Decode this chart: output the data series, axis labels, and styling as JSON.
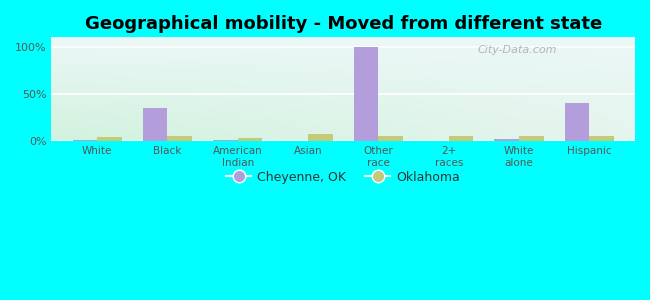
{
  "title": "Geographical mobility - Moved from different state",
  "categories": [
    "White",
    "Black",
    "American\nIndian",
    "Asian",
    "Other\nrace",
    "2+\nraces",
    "White\nalone",
    "Hispanic"
  ],
  "cheyenne_values": [
    1.0,
    35.0,
    1.0,
    0.0,
    100.0,
    0.0,
    2.0,
    40.0
  ],
  "oklahoma_values": [
    4.0,
    5.0,
    3.0,
    8.0,
    5.0,
    5.0,
    5.0,
    5.0
  ],
  "cheyenne_color": "#b39ddb",
  "oklahoma_color": "#c5c97a",
  "background_outer": "#00ffff",
  "ylim": [
    0,
    110
  ],
  "yticks": [
    0,
    50,
    100
  ],
  "ytick_labels": [
    "0%",
    "50%",
    "100%"
  ],
  "bar_width": 0.35,
  "legend_labels": [
    "Cheyenne, OK",
    "Oklahoma"
  ],
  "watermark": "City-Data.com",
  "title_fontsize": 13
}
